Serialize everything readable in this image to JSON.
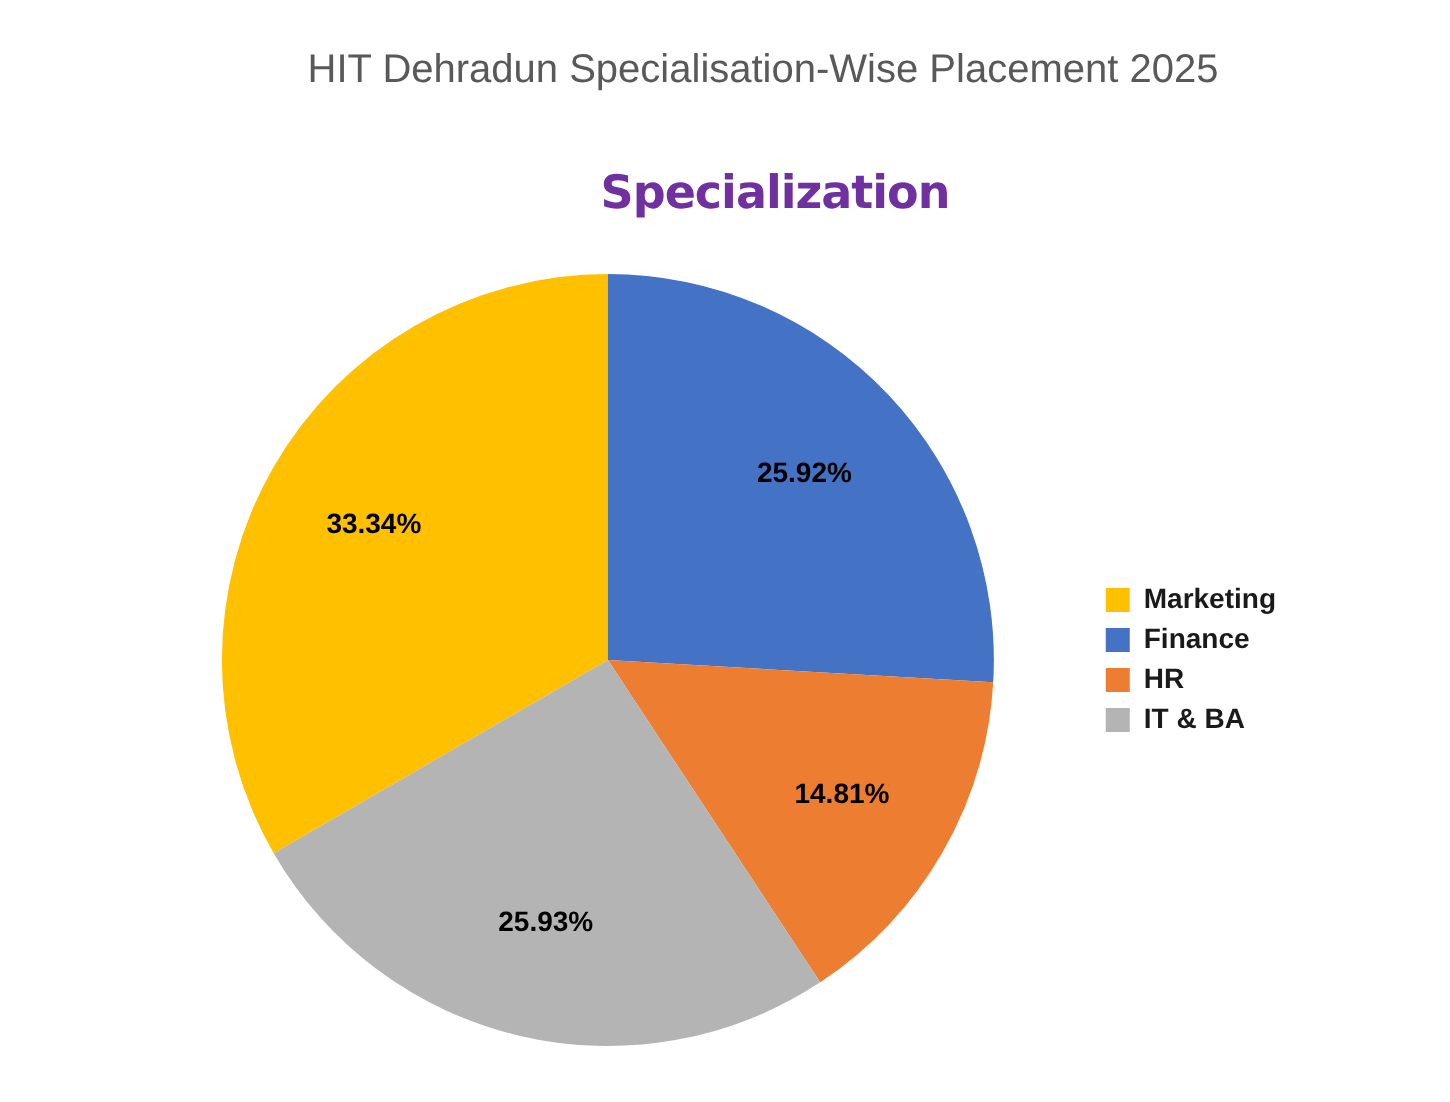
{
  "chart_data": {
    "type": "pie",
    "title": "HIT Dehradun Specialisation-Wise Placement 2025",
    "subtitle": "Specialization",
    "categories": [
      "Marketing",
      "Finance",
      "HR",
      "IT & BA"
    ],
    "values": [
      33.34,
      25.92,
      14.81,
      25.93
    ],
    "colors": [
      "#ffc000",
      "#4472c4",
      "#ed7d31",
      "#b4b4b4"
    ],
    "value_labels": [
      "33.34%",
      "25.92%",
      "14.81%",
      "25.93%"
    ],
    "legend": "right"
  }
}
